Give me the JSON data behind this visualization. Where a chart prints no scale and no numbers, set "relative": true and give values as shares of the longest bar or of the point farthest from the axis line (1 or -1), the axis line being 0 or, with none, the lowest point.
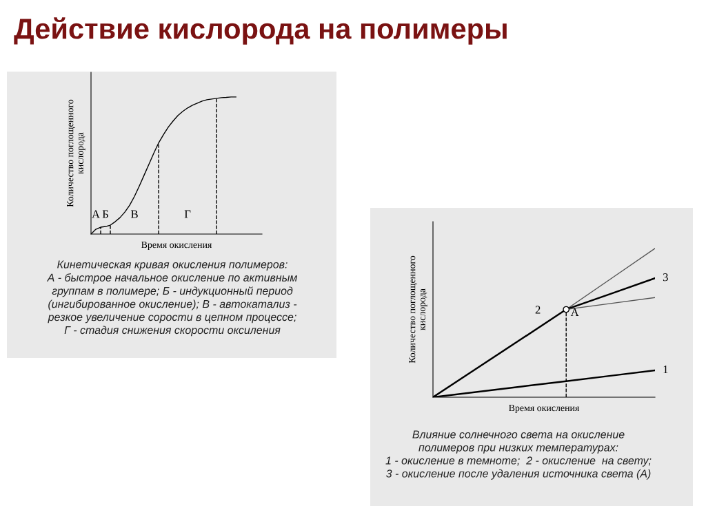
{
  "chart_data": [
    {
      "type": "line",
      "title": "Действие кислорода на полимеры",
      "relative": true,
      "xlabel": "Время окисления",
      "ylabel": "Количество поглощенного\nкислорода",
      "categories": [
        null,
        null,
        null,
        null,
        null,
        null,
        null,
        null,
        null,
        null,
        null,
        null,
        null,
        null,
        null,
        null,
        null,
        null,
        null,
        null,
        null,
        null,
        null,
        null,
        null,
        null,
        null,
        null,
        null,
        null,
        null
      ],
      "series": [
        {
          "color": "#000000",
          "values": [
            0,
            0.035,
            0.05,
            0.055,
            0.065,
            0.09,
            0.12,
            0.16,
            0.21,
            0.275,
            0.35,
            0.43,
            0.51,
            0.59,
            0.665,
            0.725,
            0.78,
            0.825,
            0.865,
            0.895,
            0.92,
            0.94,
            0.955,
            0.97,
            0.98,
            0.985,
            0.99,
            0.995,
            0.997,
            1,
            1
          ]
        }
      ],
      "annotations": [
        "А",
        "Б",
        "В",
        "Г",
        "Кинетическая кривая окисления полимеров:\nА - быстрое начальное окисление по активным\nгруппам в полимере; Б - индукционный период\n(ингибированное окисление); В - автокатализ -\nрезкое увеличение сорости в цепном процессе;\nГ - стадия снижения скорости оксиления"
      ]
    },
    {
      "type": "line",
      "relative": true,
      "xlabel": "Время окисления",
      "ylabel": "Количество поглощенного\nкислорода",
      "categories": [
        null,
        null,
        null,
        null,
        null,
        null
      ],
      "series": [
        {
          "name": "1",
          "color": "#000000",
          "values": [
            0,
            0.036,
            0.072,
            0.108,
            0.144,
            0.18
          ]
        },
        {
          "name": "2",
          "color": "#000000",
          "values": [
            0,
            0.197,
            0.393,
            0.59,
            null,
            null
          ]
        },
        {
          "color": "#555555",
          "values": [
            null,
            null,
            null,
            0.59,
            0.795,
            1
          ]
        },
        {
          "name": "3",
          "color": "#000000",
          "values": [
            null,
            null,
            null,
            0.59,
            0.695,
            0.8
          ]
        },
        {
          "color": "#555555",
          "values": [
            null,
            null,
            null,
            0.59,
            0.63,
            0.67
          ]
        }
      ],
      "annotations": [
        "A",
        "Влияние солнечного света на окисление\nполимеров при низких температурах:\n1 - окисление в темноте;  2 - окисление  на свету;\n3 - окисление после удаления источника света (А)"
      ]
    }
  ]
}
